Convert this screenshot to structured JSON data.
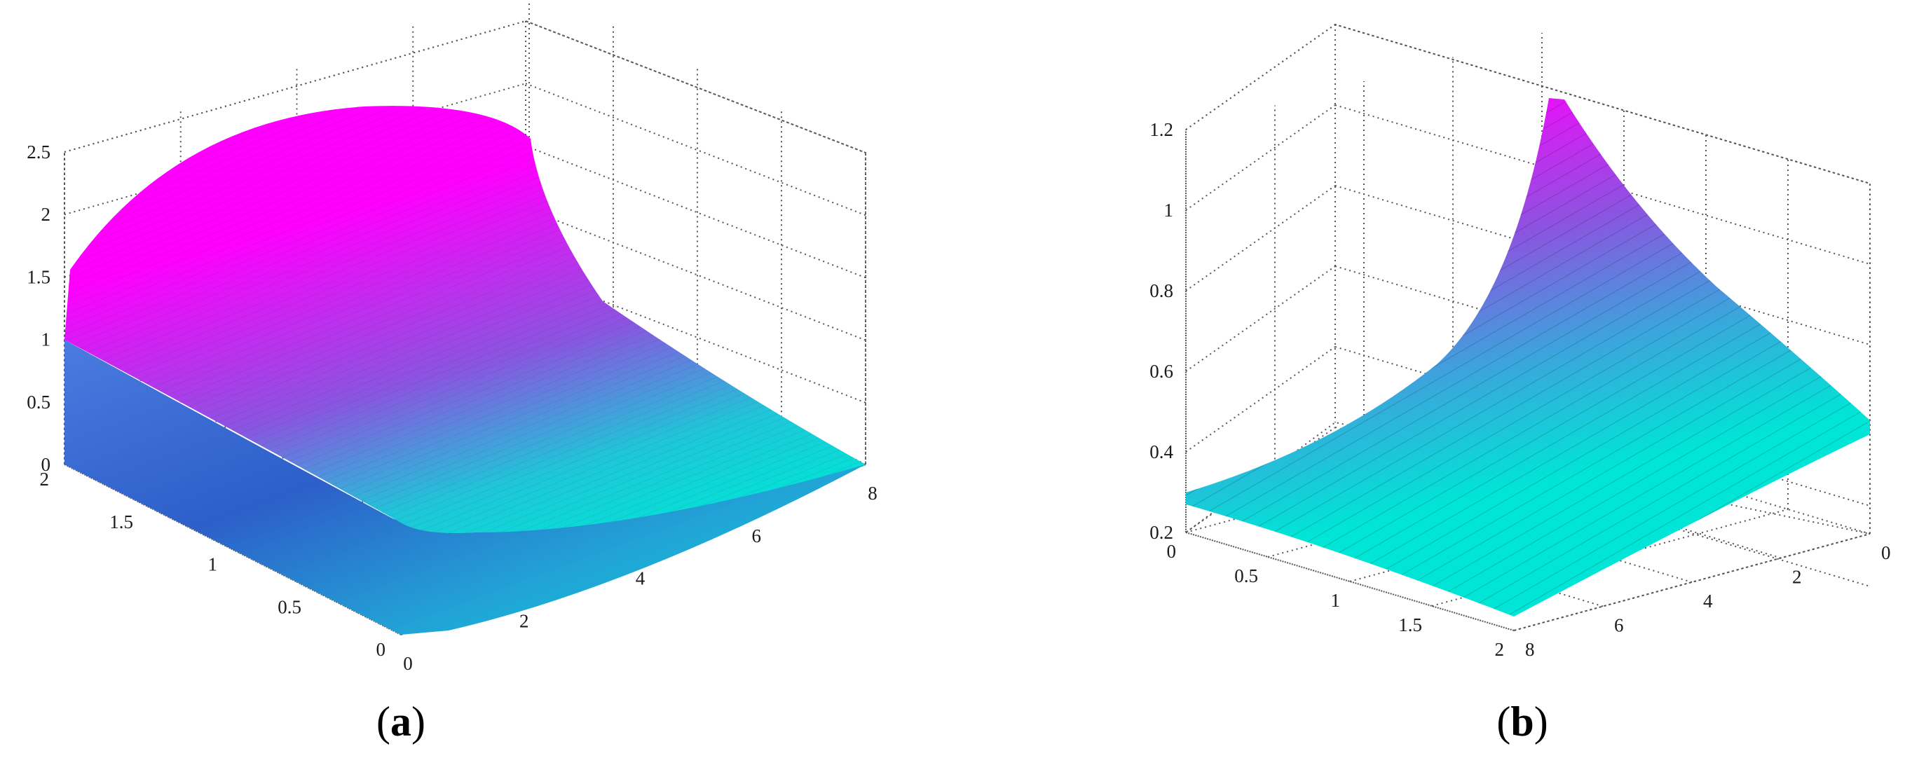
{
  "chart_data": [
    {
      "type": "surface",
      "panel_label": "a",
      "grid": true,
      "colormap": [
        "#00e5d6",
        "#ff00ff"
      ],
      "x": {
        "ticks": [
          0,
          2,
          4,
          6,
          8
        ],
        "range": [
          0,
          8
        ]
      },
      "y": {
        "ticks": [
          0,
          0.5,
          1,
          1.5,
          2
        ],
        "range": [
          0,
          2
        ]
      },
      "z": {
        "ticks": [
          0,
          0.5,
          1,
          1.5,
          2,
          2.5
        ],
        "range": [
          0,
          2.5
        ]
      },
      "surface_samples": [
        {
          "x": 0,
          "y": 0,
          "z": 1.0
        },
        {
          "x": 0,
          "y": 2,
          "z": 1.55
        },
        {
          "x": 2,
          "y": 2,
          "z": 2.2
        },
        {
          "x": 4,
          "y": 2,
          "z": 2.4
        },
        {
          "x": 6,
          "y": 2,
          "z": 2.2
        },
        {
          "x": 8,
          "y": 2,
          "z": 0.0
        }
      ]
    },
    {
      "type": "surface",
      "panel_label": "b",
      "grid": true,
      "colormap": [
        "#00e5d6",
        "#ff00ff"
      ],
      "x": {
        "ticks": [
          0,
          0.5,
          1,
          1.5,
          2
        ],
        "range": [
          0,
          2
        ]
      },
      "y": {
        "ticks": [
          0,
          2,
          4,
          6,
          8
        ],
        "range": [
          0,
          8
        ]
      },
      "z": {
        "ticks": [
          0.2,
          0.4,
          0.6,
          0.8,
          1,
          1.2
        ],
        "range": [
          0.2,
          1.2
        ]
      },
      "surface_samples": [
        {
          "x": 0,
          "y": 0,
          "z": 0.29
        },
        {
          "x": 2,
          "y": 8,
          "z": 0.2
        },
        {
          "x": 2,
          "y": 0,
          "z": 1.2
        },
        {
          "x": 0,
          "y": 8,
          "z": 0.47
        }
      ]
    }
  ]
}
